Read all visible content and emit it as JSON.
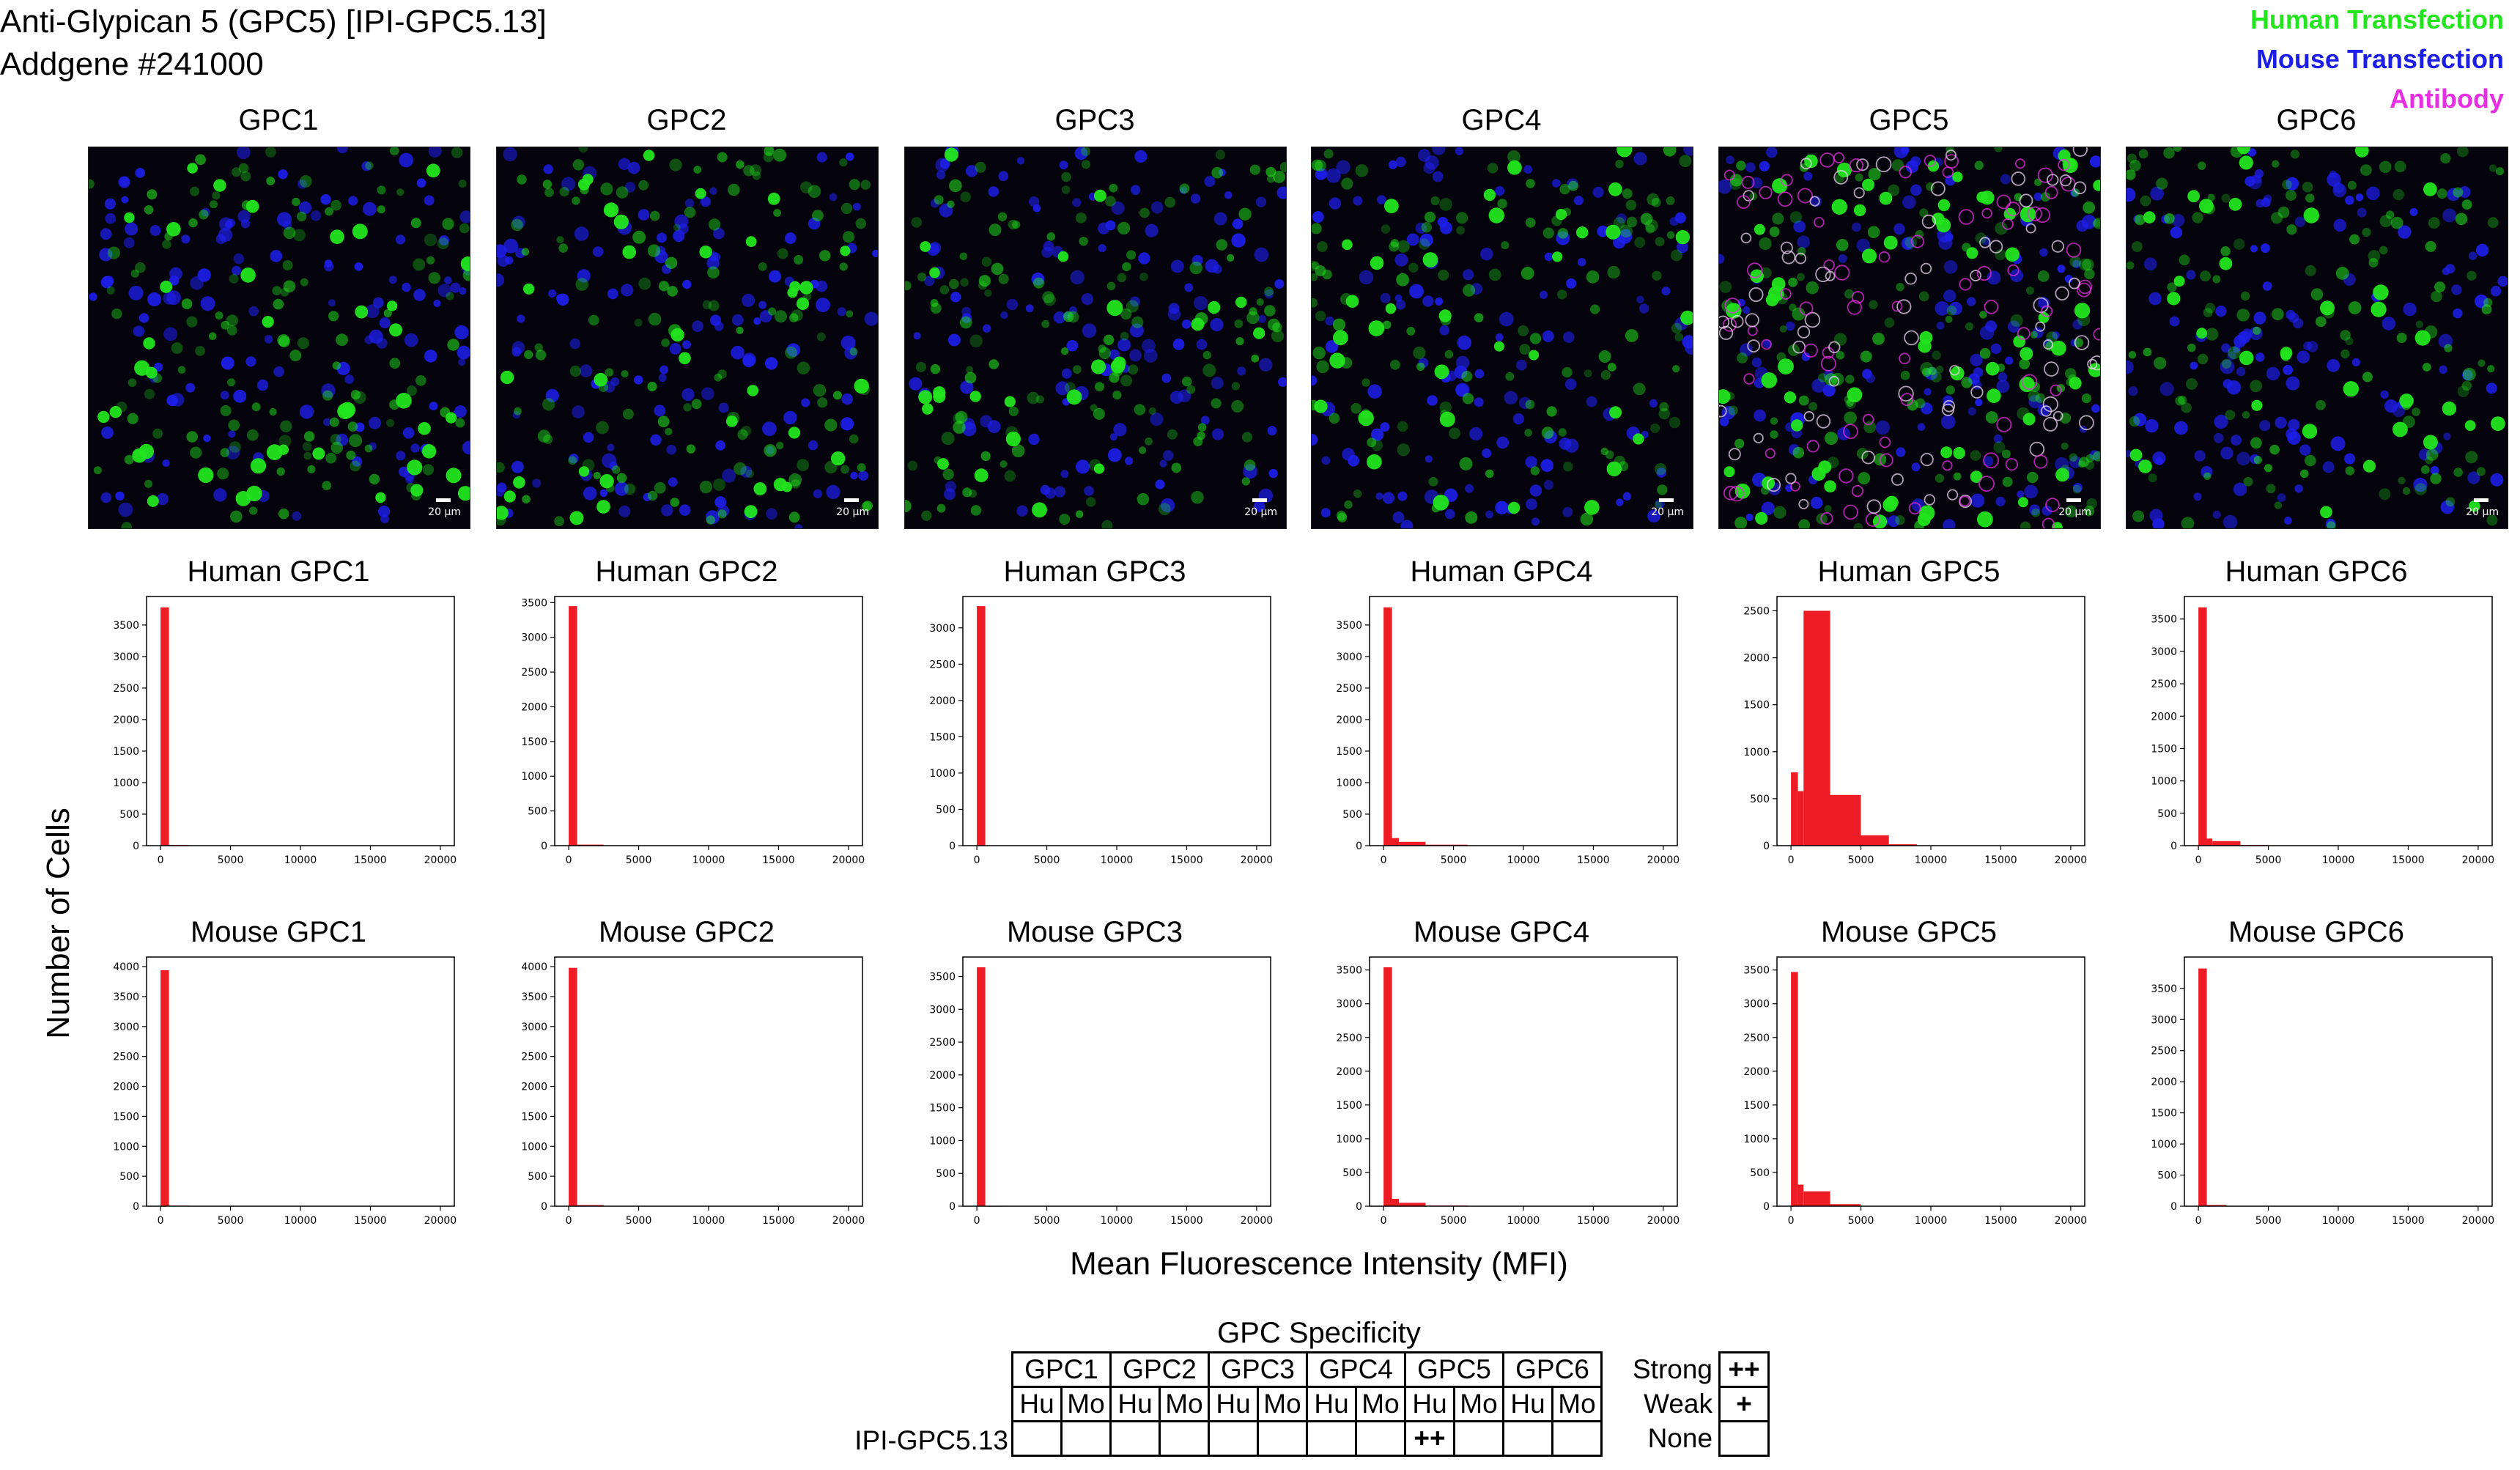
{
  "header": {
    "title_line1": "Anti-Glypican 5 (GPC5) [IPI-GPC5.13]",
    "title_line2": "Addgene #241000"
  },
  "legend": [
    {
      "label": "Human Transfection",
      "color": "#22e51e"
    },
    {
      "label": "Mouse Transfection",
      "color": "#1d1ee8"
    },
    {
      "label": "Antibody",
      "color": "#e52fe0"
    }
  ],
  "microscopy": {
    "scale_label": "20 µm",
    "panels": [
      "GPC1",
      "GPC2",
      "GPC3",
      "GPC4",
      "GPC5",
      "GPC6"
    ]
  },
  "axes": {
    "ylabel": "Number of Cells",
    "xlabel": "Mean Fluorescence Intensity (MFI)",
    "x_ticks": [
      0,
      5000,
      10000,
      15000,
      20000
    ]
  },
  "chart_data": [
    {
      "type": "bar",
      "title": "Human GPC1",
      "xlim": [
        -1000,
        21000
      ],
      "ylim": [
        0,
        3800
      ],
      "y_ticks": [
        0,
        500,
        1000,
        1500,
        2000,
        2500,
        3000,
        3500
      ],
      "bins": [
        {
          "x0": 0,
          "x1": 600,
          "y": 3780
        },
        {
          "x0": 600,
          "x1": 2000,
          "y": 10
        }
      ]
    },
    {
      "type": "bar",
      "title": "Human GPC2",
      "xlim": [
        -1000,
        21000
      ],
      "ylim": [
        0,
        3450
      ],
      "y_ticks": [
        0,
        500,
        1000,
        1500,
        2000,
        2500,
        3000,
        3500
      ],
      "bins": [
        {
          "x0": 0,
          "x1": 600,
          "y": 3450
        },
        {
          "x0": 600,
          "x1": 2500,
          "y": 15
        }
      ]
    },
    {
      "type": "bar",
      "title": "Human GPC3",
      "xlim": [
        -1000,
        21000
      ],
      "ylim": [
        0,
        3300
      ],
      "y_ticks": [
        0,
        500,
        1000,
        1500,
        2000,
        2500,
        3000
      ],
      "bins": [
        {
          "x0": 0,
          "x1": 600,
          "y": 3300
        },
        {
          "x0": 600,
          "x1": 2000,
          "y": 5
        }
      ]
    },
    {
      "type": "bar",
      "title": "Human GPC4",
      "xlim": [
        -1000,
        21000
      ],
      "ylim": [
        0,
        3800
      ],
      "y_ticks": [
        0,
        500,
        1000,
        1500,
        2000,
        2500,
        3000,
        3500
      ],
      "bins": [
        {
          "x0": 0,
          "x1": 600,
          "y": 3780
        },
        {
          "x0": 600,
          "x1": 1100,
          "y": 120
        },
        {
          "x0": 1100,
          "x1": 3000,
          "y": 60
        },
        {
          "x0": 3000,
          "x1": 6000,
          "y": 15
        }
      ]
    },
    {
      "type": "bar",
      "title": "Human GPC5",
      "xlim": [
        -1000,
        21000
      ],
      "ylim": [
        0,
        2550
      ],
      "y_ticks": [
        0,
        500,
        1000,
        1500,
        2000,
        2500
      ],
      "bins": [
        {
          "x0": 0,
          "x1": 500,
          "y": 780
        },
        {
          "x0": 500,
          "x1": 900,
          "y": 580
        },
        {
          "x0": 900,
          "x1": 2800,
          "y": 2500
        },
        {
          "x0": 2800,
          "x1": 5000,
          "y": 540
        },
        {
          "x0": 5000,
          "x1": 7000,
          "y": 110
        },
        {
          "x0": 7000,
          "x1": 9000,
          "y": 15
        }
      ]
    },
    {
      "type": "bar",
      "title": "Human GPC6",
      "xlim": [
        -1000,
        21000
      ],
      "ylim": [
        0,
        3700
      ],
      "y_ticks": [
        0,
        500,
        1000,
        1500,
        2000,
        2500,
        3000,
        3500
      ],
      "bins": [
        {
          "x0": 0,
          "x1": 600,
          "y": 3680
        },
        {
          "x0": 600,
          "x1": 1000,
          "y": 110
        },
        {
          "x0": 1000,
          "x1": 3000,
          "y": 70
        },
        {
          "x0": 3000,
          "x1": 5000,
          "y": 10
        }
      ]
    },
    {
      "type": "bar",
      "title": "Mouse GPC1",
      "xlim": [
        -1000,
        21000
      ],
      "ylim": [
        0,
        4000
      ],
      "y_ticks": [
        0,
        500,
        1000,
        1500,
        2000,
        2500,
        3000,
        3500,
        4000
      ],
      "bins": [
        {
          "x0": 0,
          "x1": 600,
          "y": 3940
        },
        {
          "x0": 600,
          "x1": 2000,
          "y": 10
        }
      ]
    },
    {
      "type": "bar",
      "title": "Mouse GPC2",
      "xlim": [
        -1000,
        21000
      ],
      "ylim": [
        0,
        4000
      ],
      "y_ticks": [
        0,
        500,
        1000,
        1500,
        2000,
        2500,
        3000,
        3500,
        4000
      ],
      "bins": [
        {
          "x0": 0,
          "x1": 600,
          "y": 3980
        },
        {
          "x0": 600,
          "x1": 2500,
          "y": 20
        }
      ]
    },
    {
      "type": "bar",
      "title": "Mouse GPC3",
      "xlim": [
        -1000,
        21000
      ],
      "ylim": [
        0,
        3650
      ],
      "y_ticks": [
        0,
        500,
        1000,
        1500,
        2000,
        2500,
        3000,
        3500
      ],
      "bins": [
        {
          "x0": 0,
          "x1": 600,
          "y": 3640
        },
        {
          "x0": 600,
          "x1": 2000,
          "y": 5
        }
      ]
    },
    {
      "type": "bar",
      "title": "Mouse GPC4",
      "xlim": [
        -1000,
        21000
      ],
      "ylim": [
        0,
        3550
      ],
      "y_ticks": [
        0,
        500,
        1000,
        1500,
        2000,
        2500,
        3000,
        3500
      ],
      "bins": [
        {
          "x0": 0,
          "x1": 600,
          "y": 3540
        },
        {
          "x0": 600,
          "x1": 1100,
          "y": 110
        },
        {
          "x0": 1100,
          "x1": 3000,
          "y": 50
        },
        {
          "x0": 3000,
          "x1": 6000,
          "y": 10
        }
      ]
    },
    {
      "type": "bar",
      "title": "Mouse GPC5",
      "xlim": [
        -1000,
        21000
      ],
      "ylim": [
        0,
        3550
      ],
      "y_ticks": [
        0,
        500,
        1000,
        1500,
        2000,
        2500,
        3000,
        3500
      ],
      "bins": [
        {
          "x0": 0,
          "x1": 500,
          "y": 3470
        },
        {
          "x0": 500,
          "x1": 900,
          "y": 320
        },
        {
          "x0": 900,
          "x1": 2800,
          "y": 220
        },
        {
          "x0": 2800,
          "x1": 5000,
          "y": 30
        },
        {
          "x0": 5000,
          "x1": 7000,
          "y": 5
        }
      ]
    },
    {
      "type": "bar",
      "title": "Mouse GPC6",
      "xlim": [
        -1000,
        21000
      ],
      "ylim": [
        0,
        3850
      ],
      "y_ticks": [
        0,
        500,
        1000,
        1500,
        2000,
        2500,
        3000,
        3500
      ],
      "bins": [
        {
          "x0": 0,
          "x1": 600,
          "y": 3820
        },
        {
          "x0": 600,
          "x1": 2000,
          "y": 20
        }
      ]
    }
  ],
  "specificity": {
    "title": "GPC Specificity",
    "groups": [
      "GPC1",
      "GPC2",
      "GPC3",
      "GPC4",
      "GPC5",
      "GPC6"
    ],
    "species": [
      "Hu",
      "Mo"
    ],
    "row_label": "IPI-GPC5.13",
    "values": [
      "",
      "",
      "",
      "",
      "",
      "",
      "",
      "",
      "++",
      "",
      "",
      ""
    ],
    "key": [
      {
        "label": "Strong",
        "symbol": "++"
      },
      {
        "label": "Weak",
        "symbol": "+"
      },
      {
        "label": "None",
        "symbol": ""
      }
    ]
  },
  "colors": {
    "bar": "#ee1c25",
    "green": "#22e51e",
    "blue": "#1d1ee8",
    "magenta": "#e52fe0"
  }
}
